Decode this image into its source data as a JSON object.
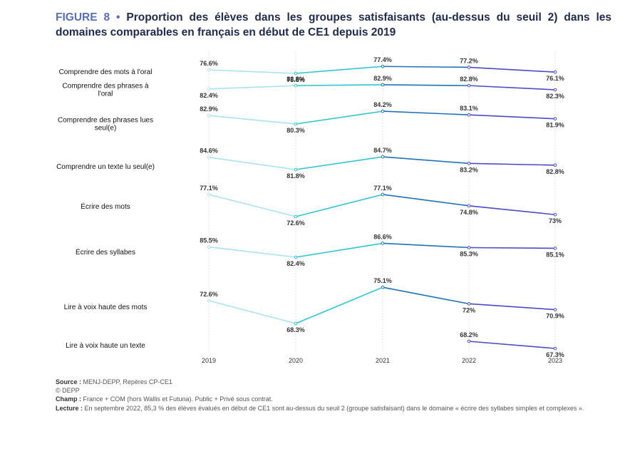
{
  "title": {
    "figure": "FIGURE 8",
    "separator": "•",
    "text": "Proportion des élèves dans les groupes satisfaisants (au-dessus du seuil 2) dans les domaines comparables en français en début de CE1 depuis 2019"
  },
  "chart_data": {
    "type": "line",
    "years": [
      "2019",
      "2020",
      "2021",
      "2022",
      "2023"
    ],
    "series": [
      {
        "name": "Comprendre des mots à l'oral",
        "lines": [
          "Comprendre des mots à l'oral"
        ],
        "values": [
          76.6,
          75.8,
          77.4,
          77.2,
          76.1
        ],
        "labels": [
          "76.6%",
          "75.8%",
          "77.4%",
          "77.2%",
          "76.1%"
        ]
      },
      {
        "name": "Comprendre des phrases à l'oral",
        "lines": [
          "Comprendre des phrases à",
          "l'oral"
        ],
        "values": [
          82.4,
          82.8,
          82.9,
          82.8,
          82.3
        ],
        "labels": [
          "82.4%",
          "82.8%",
          "82.9%",
          "82.8%",
          "82.3%"
        ]
      },
      {
        "name": "Comprendre des phrases lues seul(e)",
        "lines": [
          "Comprendre des phrases lues",
          "seul(e)"
        ],
        "values": [
          82.9,
          80.3,
          84.2,
          83.1,
          81.9
        ],
        "labels": [
          "82.9%",
          "80.3%",
          "84.2%",
          "83.1%",
          "81.9%"
        ]
      },
      {
        "name": "Comprendre un texte lu seul(e)",
        "lines": [
          "Comprendre un texte lu seul(e)"
        ],
        "values": [
          84.6,
          81.8,
          84.7,
          83.2,
          82.8
        ],
        "labels": [
          "84.6%",
          "81.8%",
          "84.7%",
          "83.2%",
          "82.8%"
        ]
      },
      {
        "name": "Écrire des mots",
        "lines": [
          "Écrire des mots"
        ],
        "values": [
          77.1,
          72.6,
          77.1,
          74.8,
          73
        ],
        "labels": [
          "77.1%",
          "72.6%",
          "77.1%",
          "74.8%",
          "73%"
        ]
      },
      {
        "name": "Écrire des syllabes",
        "lines": [
          "Écrire des syllabes"
        ],
        "values": [
          85.5,
          82.4,
          86.6,
          85.3,
          85.1
        ],
        "labels": [
          "85.5%",
          "82.4%",
          "86.6%",
          "85.3%",
          "85.1%"
        ]
      },
      {
        "name": "Lire à voix haute des mots",
        "lines": [
          "Lire à voix haute des mots"
        ],
        "values": [
          72.6,
          68.3,
          75.1,
          72,
          70.9
        ],
        "labels": [
          "72.6%",
          "68.3%",
          "75.1%",
          "72%",
          "70.9%"
        ]
      },
      {
        "name": "Lire à voix haute un texte",
        "lines": [
          "Lire à voix haute un texte"
        ],
        "values": [
          null,
          null,
          null,
          68.2,
          67.3
        ],
        "labels": [
          "",
          "",
          "",
          "68.2%",
          "67.3%"
        ]
      }
    ],
    "segment_colors": [
      "#a9e3ef",
      "#2ec4d1",
      "#1f72b8",
      "#4a4cc6"
    ],
    "grid": "vertical, dotted"
  },
  "notes": {
    "source_label": "Source :",
    "source_text": " MENJ-DEPP, Repères CP-CE1",
    "copyright": "© DEPP",
    "champ_label": "Champ :",
    "champ_text": " France + COM (hors Wallis et Futuna). Public + Privé sous contrat.",
    "lecture_label": "Lecture :",
    "lecture_text": " En septembre 2022, 85,3 % des élèves évalués en début de CE1 sont au-dessus du seuil 2 (groupe satisfaisant) dans le domaine «  écrire des syllabes simples et complexes »."
  }
}
